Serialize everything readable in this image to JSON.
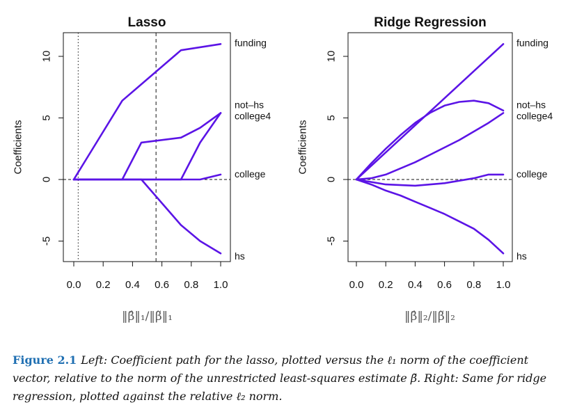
{
  "chart_data": [
    {
      "type": "line",
      "title": "Lasso",
      "xlabel": "‖β̂‖₁/‖β̃‖₁",
      "ylabel": "Coefficients",
      "xlim": [
        0.0,
        1.0
      ],
      "ylim": [
        -6.5,
        11.5
      ],
      "xticks": [
        "0.0",
        "0.2",
        "0.4",
        "0.6",
        "0.8",
        "1.0"
      ],
      "yticks": [
        "-5",
        "0",
        "5",
        "10"
      ],
      "vlines": [
        {
          "x": 0.03,
          "style": "dotted"
        },
        {
          "x": 0.56,
          "style": "dashed"
        }
      ],
      "hline": {
        "y": 0,
        "style": "dashed"
      },
      "series_color": "#5b14e6",
      "series": [
        {
          "name": "funding",
          "x": [
            0.0,
            0.33,
            0.73,
            1.0
          ],
          "y": [
            0.0,
            6.4,
            10.5,
            11.0
          ]
        },
        {
          "name": "not-hs",
          "x": [
            0.0,
            0.33,
            0.46,
            0.73,
            0.86,
            1.0
          ],
          "y": [
            0.0,
            0.0,
            3.0,
            3.4,
            4.2,
            5.4
          ]
        },
        {
          "name": "college4",
          "x": [
            0.0,
            0.73,
            0.86,
            1.0
          ],
          "y": [
            0.0,
            0.0,
            3.0,
            5.4
          ]
        },
        {
          "name": "college",
          "x": [
            0.0,
            0.86,
            1.0
          ],
          "y": [
            0.0,
            0.0,
            0.4
          ]
        },
        {
          "name": "hs",
          "x": [
            0.0,
            0.46,
            0.73,
            0.86,
            1.0
          ],
          "y": [
            0.0,
            0.0,
            -3.7,
            -5.0,
            -6.0
          ]
        }
      ],
      "right_labels": [
        {
          "text": "funding",
          "y": 11.0
        },
        {
          "text": "not–hs",
          "y": 5.9
        },
        {
          "text": "college4",
          "y": 5.4
        },
        {
          "text": "college",
          "y": 0.4
        },
        {
          "text": "hs",
          "y": -6.0
        }
      ]
    },
    {
      "type": "line",
      "title": "Ridge Regression",
      "xlabel": "‖β̂‖₂/‖β̃‖₂",
      "ylabel": "Coefficients",
      "xlim": [
        0.0,
        1.0
      ],
      "ylim": [
        -6.5,
        11.5
      ],
      "xticks": [
        "0.0",
        "0.2",
        "0.4",
        "0.6",
        "0.8",
        "1.0"
      ],
      "yticks": [
        "-5",
        "0",
        "5",
        "10"
      ],
      "hline": {
        "y": 0,
        "style": "dashed"
      },
      "series_color": "#5b14e6",
      "series": [
        {
          "name": "funding",
          "x": [
            0.0,
            0.2,
            0.4,
            0.6,
            0.8,
            1.0
          ],
          "y": [
            0.0,
            2.2,
            4.4,
            6.6,
            8.8,
            11.0
          ]
        },
        {
          "name": "not-hs",
          "x": [
            0.0,
            0.1,
            0.2,
            0.3,
            0.4,
            0.5,
            0.6,
            0.7,
            0.8,
            0.9,
            1.0
          ],
          "y": [
            0.0,
            1.3,
            2.5,
            3.6,
            4.6,
            5.4,
            6.0,
            6.3,
            6.4,
            6.2,
            5.6
          ]
        },
        {
          "name": "college4",
          "x": [
            0.0,
            0.1,
            0.2,
            0.3,
            0.4,
            0.5,
            0.6,
            0.7,
            0.8,
            0.9,
            1.0
          ],
          "y": [
            0.0,
            0.1,
            0.4,
            0.9,
            1.4,
            2.0,
            2.6,
            3.2,
            3.9,
            4.6,
            5.4
          ]
        },
        {
          "name": "college",
          "x": [
            0.0,
            0.2,
            0.4,
            0.6,
            0.8,
            0.9,
            1.0
          ],
          "y": [
            0.0,
            -0.4,
            -0.5,
            -0.3,
            0.1,
            0.4,
            0.4
          ]
        },
        {
          "name": "hs",
          "x": [
            0.0,
            0.1,
            0.2,
            0.3,
            0.4,
            0.5,
            0.6,
            0.7,
            0.8,
            0.9,
            1.0
          ],
          "y": [
            0.0,
            -0.4,
            -0.9,
            -1.3,
            -1.8,
            -2.3,
            -2.8,
            -3.4,
            -4.0,
            -4.9,
            -6.0
          ]
        }
      ],
      "right_labels": [
        {
          "text": "funding",
          "y": 11.0
        },
        {
          "text": "not–hs",
          "y": 5.9
        },
        {
          "text": "college4",
          "y": 5.4
        },
        {
          "text": "college",
          "y": 0.4
        },
        {
          "text": "hs",
          "y": -6.0
        }
      ]
    }
  ],
  "caption": {
    "label": "Figure 2.1",
    "text": "Left: Coefficient path for the lasso, plotted versus the ℓ₁ norm of the coefficient vector, relative to the norm of the unrestricted least-squares estimate β̃. Right: Same for ridge regression, plotted against the relative ℓ₂ norm."
  }
}
